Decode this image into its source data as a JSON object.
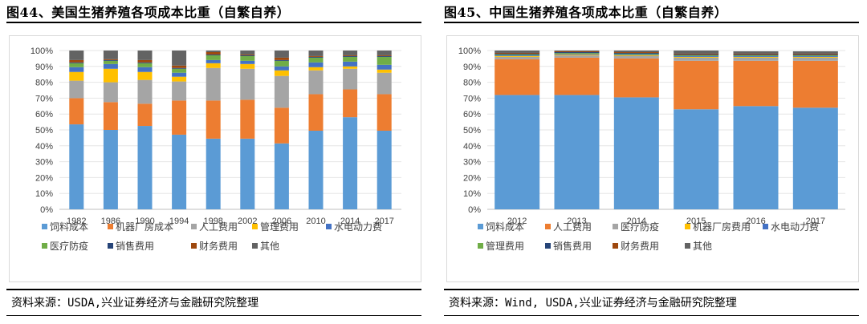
{
  "charts": [
    {
      "figure_title": "图44、美国生猪养殖各项成本比重（自繁自养）",
      "source": "资料来源：USDA,兴业证券经济与金融研究院整理"
    },
    {
      "figure_title": "图45、中国生猪养殖各项成本比重（自繁自养）",
      "source": "资料来源：Wind, USDA,兴业证券经济与金融研究院整理"
    }
  ],
  "chart_data": [
    {
      "type": "bar",
      "stacked": true,
      "title": "图44、美国生猪养殖各项成本比重（自繁自养）",
      "categories": [
        "1982",
        "1986",
        "1990",
        "1994",
        "1998",
        "2002",
        "2006",
        "2010",
        "2014",
        "2017"
      ],
      "yticks": [
        "0%",
        "10%",
        "20%",
        "30%",
        "40%",
        "50%",
        "60%",
        "70%",
        "80%",
        "90%",
        "100%"
      ],
      "ylim": [
        0,
        100
      ],
      "legend_position": "bottom",
      "series": [
        {
          "name": "饲料成本",
          "color": "#5b9bd5",
          "values": [
            53.5,
            50,
            52.5,
            47,
            44.5,
            44.5,
            41.5,
            49.5,
            58,
            49.5
          ]
        },
        {
          "name": "机器厂房成本",
          "color": "#ed7d31",
          "values": [
            16.5,
            17.5,
            14,
            21.5,
            24,
            24.5,
            22.5,
            23,
            17.5,
            23
          ]
        },
        {
          "name": "人工费用",
          "color": "#a5a5a5",
          "values": [
            11,
            12.5,
            15,
            12,
            20.5,
            19.5,
            20,
            15,
            13,
            13.5
          ]
        },
        {
          "name": "管理费用",
          "color": "#ffc000",
          "values": [
            5.5,
            8.5,
            5,
            3,
            3,
            3,
            3.5,
            2,
            1.5,
            2
          ]
        },
        {
          "name": "水电动力费",
          "color": "#4472c4",
          "values": [
            3,
            3,
            3,
            2.5,
            2,
            2,
            2.5,
            3,
            3,
            3
          ]
        },
        {
          "name": "医疗防疫",
          "color": "#70ad47",
          "values": [
            2.5,
            2,
            2.5,
            2.5,
            3,
            3,
            3.5,
            3,
            3,
            5
          ]
        },
        {
          "name": "销售费用",
          "color": "#264478",
          "values": [
            0.5,
            0.5,
            0.5,
            0.5,
            0.5,
            0.5,
            0.5,
            0.5,
            0.5,
            0.5
          ]
        },
        {
          "name": "财务费用",
          "color": "#9e480e",
          "values": [
            1.5,
            0.5,
            1.5,
            1.5,
            1.5,
            0.5,
            1.5,
            0.5,
            0.5,
            0.5
          ]
        },
        {
          "name": "其他",
          "color": "#636363",
          "values": [
            6,
            5.5,
            6,
            9.5,
            1,
            2.5,
            4.5,
            3.5,
            3,
            3
          ]
        }
      ]
    },
    {
      "type": "bar",
      "stacked": true,
      "title": "图45、中国生猪养殖各项成本比重（自繁自养）",
      "categories": [
        "2012",
        "2013",
        "2014",
        "2015",
        "2016",
        "2017"
      ],
      "yticks": [
        "0%",
        "10%",
        "20%",
        "30%",
        "40%",
        "50%",
        "60%",
        "70%",
        "80%",
        "90%",
        "100%"
      ],
      "ylim": [
        0,
        100
      ],
      "legend_position": "bottom",
      "series": [
        {
          "name": "饲料成本",
          "color": "#5b9bd5",
          "values": [
            72,
            72,
            70.5,
            63,
            65,
            64
          ]
        },
        {
          "name": "人工费用",
          "color": "#ed7d31",
          "values": [
            22.5,
            23.5,
            24.5,
            30.5,
            28.5,
            29.5
          ]
        },
        {
          "name": "医疗防疫",
          "color": "#a5a5a5",
          "values": [
            1.5,
            1.5,
            1.5,
            2,
            2,
            2
          ]
        },
        {
          "name": "机器厂房费用",
          "color": "#ffc000",
          "values": [
            0.5,
            0.5,
            0.5,
            0.5,
            0.5,
            0.5
          ]
        },
        {
          "name": "水电动力费",
          "color": "#4472c4",
          "values": [
            0.5,
            0.5,
            0.5,
            0.5,
            0.5,
            0.5
          ]
        },
        {
          "name": "管理费用",
          "color": "#70ad47",
          "values": [
            0.5,
            0.5,
            0.5,
            0.5,
            0.5,
            0.5
          ]
        },
        {
          "name": "销售费用",
          "color": "#264478",
          "values": [
            0.5,
            0.5,
            0.5,
            0.5,
            0.5,
            0.5
          ]
        },
        {
          "name": "财务费用",
          "color": "#9e480e",
          "values": [
            0.5,
            0.5,
            0.5,
            0.5,
            0.5,
            0.5
          ]
        },
        {
          "name": "其他",
          "color": "#636363",
          "values": [
            1.5,
            0.5,
            1,
            2,
            1.5,
            1.5
          ]
        }
      ]
    }
  ]
}
